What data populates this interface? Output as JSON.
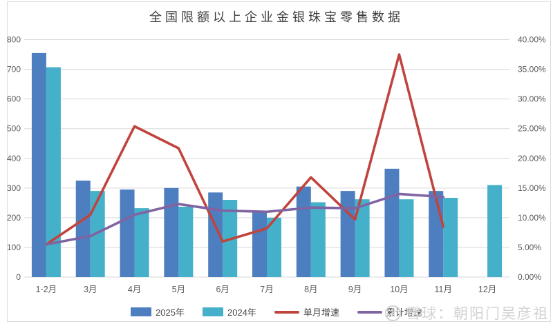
{
  "chart_data": {
    "type": "bar",
    "title": "全国限额以上企业金银珠宝零售数据",
    "categories": [
      "1-2月",
      "3月",
      "4月",
      "5月",
      "6月",
      "7月",
      "8月",
      "9月",
      "10月",
      "11月",
      "12月"
    ],
    "series": [
      {
        "name": "2025年",
        "type": "bar",
        "axis": "left",
        "color": "#4d7ebf",
        "values": [
          755,
          325,
          295,
          300,
          285,
          220,
          305,
          290,
          365,
          290,
          null
        ]
      },
      {
        "name": "2024年",
        "type": "bar",
        "axis": "left",
        "color": "#45b0c9",
        "values": [
          707,
          290,
          232,
          237,
          260,
          200,
          252,
          262,
          262,
          267,
          310
        ]
      },
      {
        "name": "单月增速",
        "type": "line",
        "axis": "right",
        "color": "#c0443e",
        "values": [
          5.5,
          10.5,
          25.4,
          21.7,
          6.0,
          8.2,
          16.8,
          9.7,
          37.5,
          8.5,
          null
        ]
      },
      {
        "name": "累计增速",
        "type": "line",
        "axis": "right",
        "color": "#8064a2",
        "values": [
          5.5,
          6.9,
          10.5,
          12.3,
          11.2,
          11.0,
          11.7,
          11.6,
          14.0,
          13.5,
          null
        ]
      }
    ],
    "left_axis": {
      "min": 0,
      "max": 800,
      "step": 100,
      "tick_labels": [
        "0",
        "100",
        "200",
        "300",
        "400",
        "500",
        "600",
        "700",
        "800"
      ]
    },
    "right_axis": {
      "min": 0,
      "max": 40,
      "step": 5,
      "tick_labels": [
        "0.00%",
        "5.00%",
        "10.00%",
        "15.00%",
        "20.00%",
        "25.00%",
        "30.00%",
        "35.00%",
        "40.00%"
      ]
    },
    "grid": true,
    "legend_position": "bottom"
  },
  "watermark": {
    "text": "雪球：朝阳门吴彦祖",
    "icon": "xueqiu-logo"
  },
  "colors": {
    "grid": "#d9d9d9",
    "axis_text": "#595959",
    "title_text": "#3d3d3d",
    "border": "#dcdcdc",
    "watermark": "#d2d2d2"
  }
}
